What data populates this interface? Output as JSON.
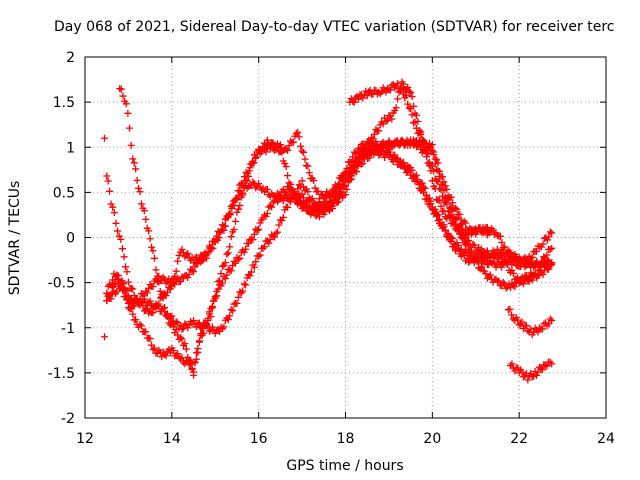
{
  "chart_data": {
    "type": "scatter",
    "title": "Day 068 of 2021, Sidereal Day-to-day VTEC variation (SDTVAR) for receiver terc",
    "xlabel": "GPS time / hours",
    "ylabel": "SDTVAR / TECUs",
    "xlim": [
      12,
      24
    ],
    "ylim": [
      -2,
      2
    ],
    "xticks": [
      "12",
      "14",
      "16",
      "18",
      "20",
      "22",
      "24"
    ],
    "yticks": [
      "-2",
      "-1.5",
      "-1",
      "-0.5",
      "0",
      "0.5",
      "1",
      "1.5",
      "2"
    ],
    "grid": true,
    "marker": "+",
    "color": "#ff0000",
    "series": [
      {
        "name": "series-1",
        "points": [
          [
            12.45,
            -1.1
          ],
          [
            12.5,
            -0.6
          ],
          [
            12.7,
            -0.4
          ],
          [
            12.9,
            -0.55
          ],
          [
            13.1,
            -0.75
          ],
          [
            13.4,
            -0.6
          ],
          [
            13.7,
            -0.45
          ],
          [
            14.0,
            -0.5
          ],
          [
            14.3,
            -0.45
          ],
          [
            14.6,
            -0.3
          ],
          [
            14.9,
            -0.1
          ],
          [
            15.2,
            0.15
          ],
          [
            15.5,
            0.45
          ],
          [
            15.8,
            0.6
          ],
          [
            16.1,
            0.55
          ],
          [
            16.4,
            0.42
          ],
          [
            16.7,
            0.45
          ],
          [
            17.0,
            0.45
          ],
          [
            17.3,
            0.3
          ],
          [
            17.6,
            0.35
          ],
          [
            18.0,
            0.6
          ],
          [
            18.4,
            0.85
          ],
          [
            18.8,
            1.0
          ],
          [
            19.2,
            1.05
          ],
          [
            19.6,
            1.05
          ],
          [
            19.9,
            0.9
          ],
          [
            20.2,
            0.5
          ],
          [
            20.5,
            0.15
          ],
          [
            20.8,
            -0.05
          ],
          [
            21.1,
            -0.15
          ],
          [
            21.4,
            -0.2
          ],
          [
            21.7,
            -0.25
          ],
          [
            22.0,
            -0.3
          ],
          [
            22.3,
            -0.3
          ],
          [
            22.55,
            -0.28
          ],
          [
            22.75,
            -0.28
          ]
        ]
      },
      {
        "name": "series-2",
        "points": [
          [
            12.45,
            1.1
          ],
          [
            12.5,
            0.7
          ],
          [
            12.6,
            0.4
          ],
          [
            12.75,
            0.1
          ],
          [
            12.9,
            -0.2
          ],
          [
            13.0,
            -0.5
          ],
          [
            13.2,
            -0.7
          ],
          [
            13.5,
            -0.85
          ],
          [
            13.8,
            -0.65
          ],
          [
            14.0,
            -0.55
          ],
          [
            14.2,
            -0.15
          ],
          [
            14.5,
            -0.25
          ],
          [
            14.8,
            -0.2
          ],
          [
            15.2,
            0.1
          ],
          [
            15.6,
            0.6
          ],
          [
            16.0,
            0.95
          ],
          [
            16.3,
            1.0
          ],
          [
            16.6,
            0.95
          ],
          [
            16.9,
            1.15
          ],
          [
            17.1,
            0.8
          ],
          [
            17.4,
            0.45
          ],
          [
            17.7,
            0.5
          ],
          [
            18.0,
            0.75
          ],
          [
            18.3,
            1.0
          ],
          [
            18.6,
            1.05
          ],
          [
            18.9,
            1.0
          ],
          [
            19.2,
            0.85
          ],
          [
            19.5,
            0.75
          ],
          [
            19.8,
            0.55
          ],
          [
            20.1,
            0.25
          ],
          [
            20.4,
            0.0
          ],
          [
            20.7,
            -0.15
          ],
          [
            21.0,
            -0.2
          ],
          [
            21.3,
            -0.2
          ],
          [
            21.5,
            -0.15
          ],
          [
            21.8,
            -0.2
          ],
          [
            22.0,
            -0.25
          ],
          [
            22.2,
            -0.25
          ],
          [
            22.4,
            -0.15
          ],
          [
            22.55,
            -0.05
          ],
          [
            22.75,
            0.05
          ]
        ]
      },
      {
        "name": "series-3",
        "points": [
          [
            12.8,
            1.65
          ],
          [
            12.95,
            1.5
          ],
          [
            13.1,
            0.9
          ],
          [
            13.3,
            0.4
          ],
          [
            13.5,
            0.0
          ],
          [
            13.7,
            -0.5
          ],
          [
            13.9,
            -0.9
          ],
          [
            14.1,
            -1.05
          ],
          [
            14.3,
            -1.2
          ],
          [
            14.5,
            -1.5
          ],
          [
            14.7,
            -1.0
          ],
          [
            14.9,
            -0.85
          ],
          [
            15.1,
            -0.45
          ],
          [
            15.3,
            -0.15
          ],
          [
            15.6,
            0.45
          ],
          [
            15.9,
            0.9
          ],
          [
            16.2,
            1.05
          ],
          [
            16.5,
            1.0
          ],
          [
            16.8,
            0.45
          ],
          [
            17.1,
            0.3
          ],
          [
            17.4,
            0.25
          ],
          [
            17.7,
            0.35
          ],
          [
            18.0,
            0.5
          ],
          [
            18.3,
            0.9
          ],
          [
            18.6,
            1.1
          ],
          [
            18.9,
            1.3
          ],
          [
            19.1,
            1.35
          ],
          [
            19.3,
            1.7
          ],
          [
            19.5,
            1.6
          ],
          [
            19.7,
            1.2
          ],
          [
            19.9,
            0.85
          ],
          [
            20.1,
            0.45
          ],
          [
            20.3,
            0.25
          ],
          [
            20.5,
            0.15
          ],
          [
            20.7,
            0.0
          ],
          [
            20.9,
            -0.2
          ],
          [
            21.2,
            -0.4
          ],
          [
            21.5,
            -0.5
          ],
          [
            21.8,
            -0.55
          ],
          [
            22.1,
            -0.45
          ],
          [
            22.4,
            -0.4
          ],
          [
            22.6,
            -0.2
          ],
          [
            22.75,
            -0.12
          ]
        ]
      },
      {
        "name": "series-4",
        "points": [
          [
            12.5,
            -0.7
          ],
          [
            12.7,
            -0.5
          ],
          [
            12.85,
            -0.45
          ],
          [
            13.0,
            -0.75
          ],
          [
            13.2,
            -0.95
          ],
          [
            13.4,
            -1.05
          ],
          [
            13.6,
            -1.25
          ],
          [
            13.8,
            -1.3
          ],
          [
            14.0,
            -1.25
          ],
          [
            14.2,
            -1.35
          ],
          [
            14.4,
            -1.4
          ],
          [
            14.5,
            -1.5
          ],
          [
            14.6,
            -1.2
          ],
          [
            14.8,
            -0.95
          ],
          [
            15.0,
            -0.65
          ],
          [
            15.2,
            -0.45
          ],
          [
            15.5,
            -0.25
          ],
          [
            15.8,
            -0.05
          ],
          [
            16.1,
            0.2
          ],
          [
            16.4,
            0.45
          ],
          [
            16.7,
            0.55
          ],
          [
            16.9,
            0.4
          ],
          [
            17.2,
            0.3
          ],
          [
            17.5,
            0.4
          ],
          [
            17.8,
            0.55
          ],
          [
            18.1,
            0.75
          ],
          [
            18.4,
            0.95
          ],
          [
            18.7,
            0.95
          ],
          [
            19.0,
            0.9
          ],
          [
            19.3,
            0.8
          ],
          [
            19.6,
            0.65
          ],
          [
            19.9,
            0.4
          ],
          [
            20.2,
            0.15
          ],
          [
            20.5,
            -0.1
          ],
          [
            20.8,
            -0.25
          ],
          [
            21.1,
            -0.25
          ],
          [
            21.4,
            -0.3
          ],
          [
            21.7,
            -0.3
          ],
          [
            22.0,
            -0.5
          ],
          [
            22.3,
            -0.45
          ],
          [
            22.55,
            -0.38
          ],
          [
            22.75,
            -0.3
          ]
        ]
      },
      {
        "name": "series-5",
        "points": [
          [
            12.5,
            -0.7
          ],
          [
            12.8,
            -0.55
          ],
          [
            13.0,
            -0.7
          ],
          [
            13.3,
            -0.7
          ],
          [
            13.6,
            -0.75
          ],
          [
            13.9,
            -0.85
          ],
          [
            14.2,
            -1.0
          ],
          [
            14.5,
            -0.95
          ],
          [
            14.8,
            -1.0
          ],
          [
            15.1,
            -1.05
          ],
          [
            15.4,
            -0.8
          ],
          [
            15.7,
            -0.5
          ],
          [
            15.9,
            -0.3
          ],
          [
            16.1,
            -0.1
          ],
          [
            16.4,
            0.05
          ],
          [
            16.7,
            0.4
          ],
          [
            17.0,
            0.6
          ],
          [
            17.3,
            0.35
          ],
          [
            17.6,
            0.3
          ],
          [
            17.9,
            0.5
          ],
          [
            18.2,
            0.8
          ],
          [
            18.5,
            0.95
          ],
          [
            18.8,
            1.02
          ],
          [
            19.1,
            1.05
          ],
          [
            19.4,
            1.05
          ],
          [
            19.7,
            1.05
          ],
          [
            20.0,
            1.0
          ],
          [
            20.3,
            0.55
          ],
          [
            20.6,
            0.25
          ],
          [
            20.9,
            0.05
          ],
          [
            21.2,
            0.1
          ],
          [
            21.5,
            0.05
          ],
          [
            21.7,
            -0.15
          ],
          [
            22.0,
            -0.25
          ],
          [
            22.3,
            -0.3
          ],
          [
            22.55,
            -0.3
          ],
          [
            22.75,
            -0.28
          ]
        ]
      },
      {
        "name": "series-6",
        "points": [
          [
            18.1,
            1.5
          ],
          [
            18.3,
            1.55
          ],
          [
            18.5,
            1.6
          ],
          [
            18.8,
            1.62
          ],
          [
            19.0,
            1.65
          ],
          [
            19.2,
            1.7
          ],
          [
            19.4,
            1.55
          ],
          [
            19.6,
            1.25
          ],
          [
            19.8,
            1.05
          ],
          [
            20.0,
            0.95
          ],
          [
            20.2,
            0.6
          ],
          [
            20.4,
            0.35
          ],
          [
            20.6,
            0.15
          ],
          [
            20.8,
            0.05
          ],
          [
            21.0,
            0.1
          ],
          [
            21.3,
            0.05
          ]
        ]
      },
      {
        "name": "series-7",
        "points": [
          [
            21.75,
            -0.8
          ],
          [
            21.9,
            -0.9
          ],
          [
            22.1,
            -0.98
          ],
          [
            22.3,
            -1.05
          ],
          [
            22.5,
            -1.0
          ],
          [
            22.75,
            -0.92
          ]
        ]
      },
      {
        "name": "series-8",
        "points": [
          [
            21.8,
            -1.42
          ],
          [
            22.0,
            -1.48
          ],
          [
            22.2,
            -1.55
          ],
          [
            22.4,
            -1.5
          ],
          [
            22.6,
            -1.4
          ],
          [
            22.75,
            -1.4
          ]
        ]
      }
    ]
  }
}
